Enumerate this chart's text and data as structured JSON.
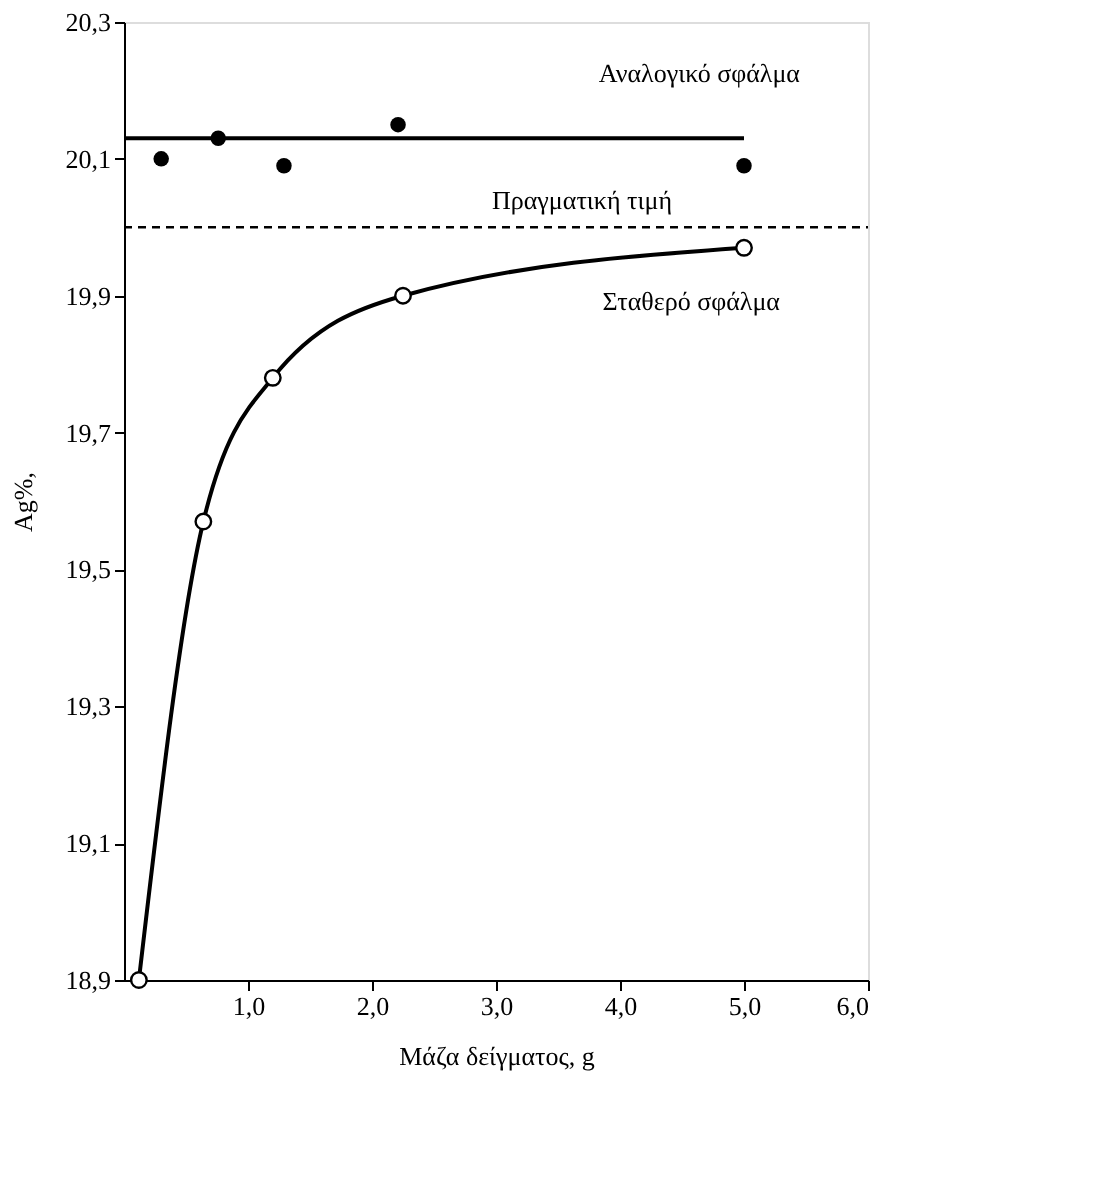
{
  "chart_data": {
    "type": "line",
    "xlabel": "Μάζα δείγματος, g",
    "ylabel": "Ag%,",
    "xlim": [
      0,
      6
    ],
    "xticks": [
      {
        "value": 1,
        "label": "1,0"
      },
      {
        "value": 2,
        "label": "2,0"
      },
      {
        "value": 3,
        "label": "3,0"
      },
      {
        "value": 4,
        "label": "4,0"
      },
      {
        "value": 5,
        "label": "5,0"
      },
      {
        "value": 6,
        "label": "6,0"
      }
    ],
    "ylim": [
      18.9,
      20.3
    ],
    "yticks": [
      {
        "value": 18.9,
        "label": "18,9"
      },
      {
        "value": 19.1,
        "label": "19,1"
      },
      {
        "value": 19.3,
        "label": "19,3"
      },
      {
        "value": 19.5,
        "label": "19,5"
      },
      {
        "value": 19.7,
        "label": "19,7"
      },
      {
        "value": 19.9,
        "label": "19,9"
      },
      {
        "value": 20.1,
        "label": "20,1"
      },
      {
        "value": 20.3,
        "label": "20,3"
      }
    ],
    "grid": false,
    "legend": false,
    "series": [
      {
        "type": "scatter",
        "color": "#000000",
        "marker": "circle",
        "x": [
          0.3,
          0.76,
          1.29,
          2.21,
          5.0
        ],
        "values": [
          20.1,
          20.13,
          20.09,
          20.15,
          20.09
        ]
      },
      {
        "name": "Αναλογικό σφάλμα",
        "color": "#000000",
        "marker": "none",
        "line_style": "solid",
        "x": [
          0,
          5.0
        ],
        "values": [
          20.13,
          20.13
        ]
      },
      {
        "name": "Σταθερό σφάλμα",
        "color": "#000000",
        "marker": "circle",
        "line_style": "solid",
        "x": [
          0.12,
          0.64,
          1.2,
          2.25,
          5.0
        ],
        "values": [
          18.9,
          19.57,
          19.78,
          19.9,
          19.97
        ]
      }
    ],
    "ref_lines": [
      {
        "axis": "y",
        "value": 20.0,
        "label": "Πραγματική τιμή",
        "line_style": "dashed",
        "color": "#000000"
      }
    ]
  }
}
